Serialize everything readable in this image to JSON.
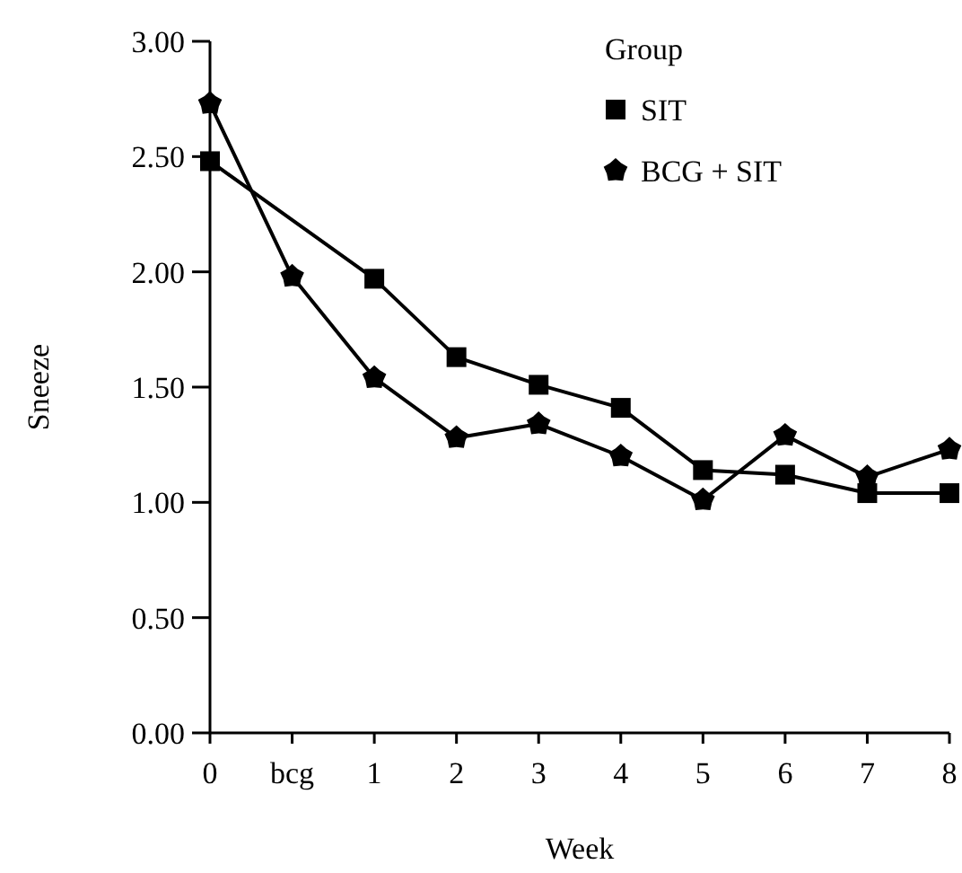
{
  "chart_data": {
    "type": "line",
    "xlabel": "Week",
    "ylabel": "Sneeze",
    "legend_title": "Group",
    "legend": "top right",
    "categories": [
      "0",
      "bcg",
      "1",
      "2",
      "3",
      "4",
      "5",
      "6",
      "7",
      "8"
    ],
    "ylim": [
      0,
      3
    ],
    "yticks": [
      {
        "value": 0,
        "label": "0.00"
      },
      {
        "value": 0.5,
        "label": "0.50"
      },
      {
        "value": 1,
        "label": "1.00"
      },
      {
        "value": 1.5,
        "label": "1.50"
      },
      {
        "value": 2,
        "label": "2.00"
      },
      {
        "value": 2.5,
        "label": "2.50"
      },
      {
        "value": 3,
        "label": "3.00"
      }
    ],
    "grid": false,
    "line_style": "solid",
    "series": [
      {
        "name": "SIT",
        "color": "#000000",
        "marker": "square",
        "values": [
          2.48,
          null,
          1.97,
          1.63,
          1.51,
          1.41,
          1.14,
          1.12,
          1.04,
          1.04
        ]
      },
      {
        "name": "BCG + SIT",
        "color": "#000000",
        "marker": "star",
        "values": [
          2.73,
          1.98,
          1.54,
          1.28,
          1.34,
          1.2,
          1.01,
          1.29,
          1.11,
          1.23
        ]
      }
    ]
  }
}
